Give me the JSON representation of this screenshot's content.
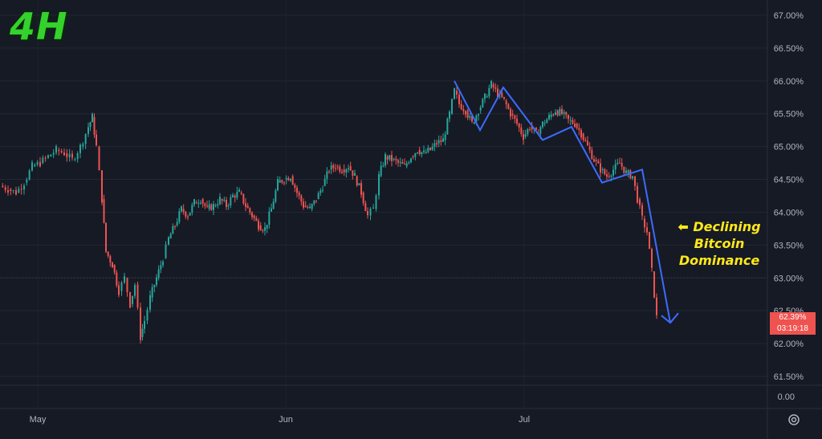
{
  "overlay": {
    "timeframe": "4H",
    "annotation_arrow": "⬅",
    "annotation_lines": [
      "Declining",
      "Bitcoin",
      "Dominance"
    ]
  },
  "price_tag": {
    "value": "62.39%",
    "countdown": "03:19:18",
    "color": "#ef5350"
  },
  "colors": {
    "background": "#161a25",
    "up_candle": "#26a69a",
    "down_candle": "#ef5350",
    "trend_line": "#3d6bff",
    "annotation": "#ffe81a",
    "title": "#35d12e"
  },
  "chart_data": {
    "type": "line",
    "title": "",
    "xlabel": "",
    "ylabel": "",
    "y_axis_ticks": [
      "67.00%",
      "66.50%",
      "66.00%",
      "65.50%",
      "65.00%",
      "64.50%",
      "64.00%",
      "63.50%",
      "63.00%",
      "62.50%",
      "62.00%",
      "61.50%"
    ],
    "lower_pane_tick": "0.00",
    "x_axis_ticks": [
      "May",
      "Jun",
      "Jul"
    ],
    "ylim": [
      61.5,
      67.0
    ],
    "grid": true,
    "legend": "none",
    "series": [
      {
        "style": "candlestick_approx",
        "points": [
          [
            0,
            64.4
          ],
          [
            10,
            64.35
          ],
          [
            20,
            64.3
          ],
          [
            30,
            64.45
          ],
          [
            40,
            64.7
          ],
          [
            50,
            64.75
          ],
          [
            60,
            64.85
          ],
          [
            70,
            64.95
          ],
          [
            80,
            64.9
          ],
          [
            90,
            64.8
          ],
          [
            100,
            65.0
          ],
          [
            110,
            65.3
          ],
          [
            115,
            65.45
          ],
          [
            120,
            65.0
          ],
          [
            127,
            64.2
          ],
          [
            132,
            63.4
          ],
          [
            140,
            63.2
          ],
          [
            148,
            62.8
          ],
          [
            155,
            63.0
          ],
          [
            162,
            62.6
          ],
          [
            168,
            62.9
          ],
          [
            175,
            62.1
          ],
          [
            180,
            62.35
          ],
          [
            187,
            62.7
          ],
          [
            195,
            63.0
          ],
          [
            203,
            63.3
          ],
          [
            210,
            63.6
          ],
          [
            218,
            63.8
          ],
          [
            226,
            64.05
          ],
          [
            234,
            63.95
          ],
          [
            242,
            64.15
          ],
          [
            250,
            64.2
          ],
          [
            258,
            64.05
          ],
          [
            266,
            64.1
          ],
          [
            274,
            64.2
          ],
          [
            282,
            64.1
          ],
          [
            290,
            64.25
          ],
          [
            298,
            64.3
          ],
          [
            306,
            64.1
          ],
          [
            314,
            63.95
          ],
          [
            322,
            63.8
          ],
          [
            330,
            63.75
          ],
          [
            338,
            64.05
          ],
          [
            346,
            64.45
          ],
          [
            354,
            64.5
          ],
          [
            362,
            64.55
          ],
          [
            370,
            64.3
          ],
          [
            378,
            64.1
          ],
          [
            386,
            64.05
          ],
          [
            394,
            64.2
          ],
          [
            402,
            64.4
          ],
          [
            410,
            64.65
          ],
          [
            418,
            64.7
          ],
          [
            426,
            64.65
          ],
          [
            434,
            64.7
          ],
          [
            442,
            64.55
          ],
          [
            450,
            64.3
          ],
          [
            458,
            63.95
          ],
          [
            465,
            64.05
          ],
          [
            472,
            64.55
          ],
          [
            480,
            64.85
          ],
          [
            488,
            64.8
          ],
          [
            496,
            64.75
          ],
          [
            504,
            64.7
          ],
          [
            512,
            64.85
          ],
          [
            520,
            64.95
          ],
          [
            528,
            64.9
          ],
          [
            536,
            64.95
          ],
          [
            544,
            65.05
          ],
          [
            552,
            65.1
          ],
          [
            560,
            65.5
          ],
          [
            566,
            65.85
          ],
          [
            572,
            65.65
          ],
          [
            580,
            65.55
          ],
          [
            588,
            65.35
          ],
          [
            596,
            65.55
          ],
          [
            604,
            65.75
          ],
          [
            612,
            65.95
          ],
          [
            620,
            65.8
          ],
          [
            628,
            65.7
          ],
          [
            636,
            65.5
          ],
          [
            644,
            65.35
          ],
          [
            652,
            65.15
          ],
          [
            660,
            65.3
          ],
          [
            668,
            65.2
          ],
          [
            676,
            65.35
          ],
          [
            684,
            65.45
          ],
          [
            692,
            65.55
          ],
          [
            700,
            65.5
          ],
          [
            708,
            65.4
          ],
          [
            716,
            65.35
          ],
          [
            724,
            65.2
          ],
          [
            732,
            65.0
          ],
          [
            740,
            64.8
          ],
          [
            748,
            64.65
          ],
          [
            756,
            64.55
          ],
          [
            764,
            64.65
          ],
          [
            772,
            64.75
          ],
          [
            780,
            64.6
          ],
          [
            788,
            64.55
          ],
          [
            794,
            64.2
          ],
          [
            800,
            63.9
          ],
          [
            806,
            63.7
          ],
          [
            812,
            63.1
          ],
          [
            818,
            62.4
          ]
        ]
      }
    ],
    "trend_overlay": {
      "style": "polyline_with_arrowhead",
      "points": [
        [
          66.0,
          "start"
        ],
        [
          65.25,
          ""
        ],
        [
          65.9,
          ""
        ],
        [
          65.1,
          ""
        ],
        [
          65.3,
          ""
        ],
        [
          64.45,
          ""
        ],
        [
          64.65,
          ""
        ],
        [
          62.39,
          "end"
        ]
      ]
    }
  }
}
